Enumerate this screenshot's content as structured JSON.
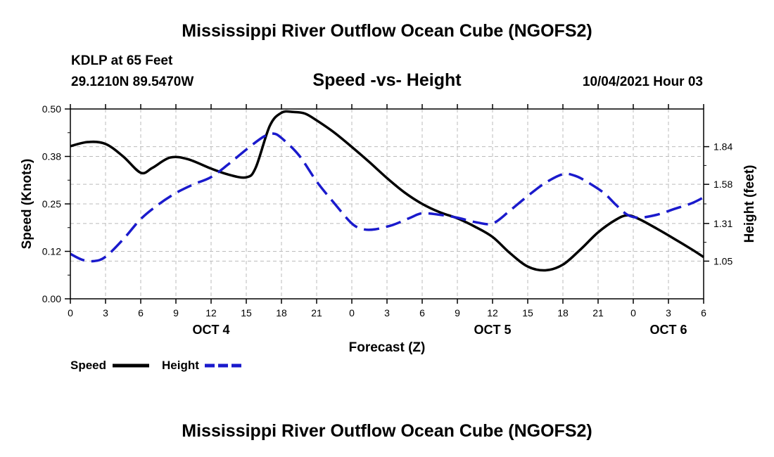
{
  "header": {
    "title": "Mississippi River Outflow Ocean Cube (NGOFS2)",
    "station": "KDLP at 65 Feet",
    "coords": "29.1210N  89.5470W",
    "subtitle": "Speed -vs- Height",
    "datetime": "10/04/2021 Hour 03"
  },
  "footer": {
    "title": "Mississippi River Outflow Ocean Cube (NGOFS2)"
  },
  "colors": {
    "speed": "#000000",
    "height": "#1a1acc",
    "grid": "#bbbbbb"
  },
  "chart_data": {
    "type": "line",
    "title": "Speed -vs- Height",
    "xlabel": "Forecast (Z)",
    "ylabel": "Speed (Knots)",
    "y2label": "Height (feet)",
    "xlim": [
      0,
      54
    ],
    "ylim": [
      0,
      0.5
    ],
    "y2lim": [
      0.79,
      2.1
    ],
    "x_ticks": [
      0,
      3,
      6,
      9,
      12,
      15,
      18,
      21,
      24,
      27,
      30,
      33,
      36,
      39,
      42,
      45,
      48,
      51,
      54
    ],
    "x_tick_labels": [
      "0",
      "3",
      "6",
      "9",
      "12",
      "15",
      "18",
      "21",
      "0",
      "3",
      "6",
      "9",
      "12",
      "15",
      "18",
      "21",
      "0",
      "3",
      "6"
    ],
    "day_labels": [
      {
        "x": 12,
        "label": "OCT 4"
      },
      {
        "x": 36,
        "label": "OCT 5"
      },
      {
        "x": 51,
        "label": "OCT 6"
      }
    ],
    "y_ticks": [
      0.0,
      0.125,
      0.25,
      0.375,
      0.5
    ],
    "y_tick_labels": [
      "0.00",
      "0.12",
      "0.25",
      "0.38",
      "0.50"
    ],
    "y2_ticks": [
      1.05,
      1.31,
      1.58,
      1.84
    ],
    "y2_tick_labels": [
      "1.05",
      "1.31",
      "1.58",
      "1.84"
    ],
    "grid": true,
    "legend_position": "bottom-left",
    "series": [
      {
        "name": "Speed",
        "axis": "left",
        "style": "solid",
        "x": [
          0,
          1.5,
          3,
          4.5,
          6,
          7,
          8.5,
          10,
          12,
          13.5,
          15,
          15.8,
          17,
          18,
          19,
          20,
          21,
          22.5,
          24,
          25.5,
          27,
          28.5,
          30,
          31.5,
          33,
          34.5,
          36,
          37.5,
          39,
          40.5,
          42,
          43.5,
          45,
          46.5,
          47.5,
          48.5,
          50,
          51.5,
          53,
          54
        ],
        "values": [
          0.402,
          0.413,
          0.408,
          0.375,
          0.332,
          0.345,
          0.372,
          0.368,
          0.343,
          0.327,
          0.32,
          0.345,
          0.455,
          0.49,
          0.492,
          0.488,
          0.47,
          0.438,
          0.4,
          0.36,
          0.318,
          0.28,
          0.25,
          0.228,
          0.212,
          0.19,
          0.163,
          0.12,
          0.085,
          0.075,
          0.09,
          0.13,
          0.175,
          0.208,
          0.22,
          0.21,
          0.185,
          0.158,
          0.13,
          0.11
        ]
      },
      {
        "name": "Height",
        "axis": "right",
        "style": "dashed",
        "x": [
          0,
          1,
          2,
          3,
          4.5,
          6,
          7.5,
          9,
          10.5,
          12,
          13.5,
          15,
          16.5,
          17.3,
          18,
          19.5,
          21,
          22.5,
          24,
          25,
          26,
          27.5,
          29,
          30,
          31.5,
          33,
          34.5,
          36,
          37.5,
          39,
          40.5,
          42,
          43,
          44,
          45.5,
          46.5,
          47.5,
          48.5,
          50,
          51.5,
          53,
          54
        ],
        "values": [
          1.1,
          1.06,
          1.05,
          1.08,
          1.2,
          1.34,
          1.44,
          1.52,
          1.58,
          1.63,
          1.72,
          1.82,
          1.91,
          1.93,
          1.9,
          1.78,
          1.6,
          1.45,
          1.31,
          1.27,
          1.27,
          1.3,
          1.35,
          1.38,
          1.37,
          1.35,
          1.32,
          1.31,
          1.4,
          1.5,
          1.59,
          1.65,
          1.64,
          1.6,
          1.52,
          1.44,
          1.37,
          1.35,
          1.37,
          1.41,
          1.45,
          1.49
        ]
      }
    ]
  },
  "legend": {
    "speed_label": "Speed",
    "height_label": "Height"
  }
}
